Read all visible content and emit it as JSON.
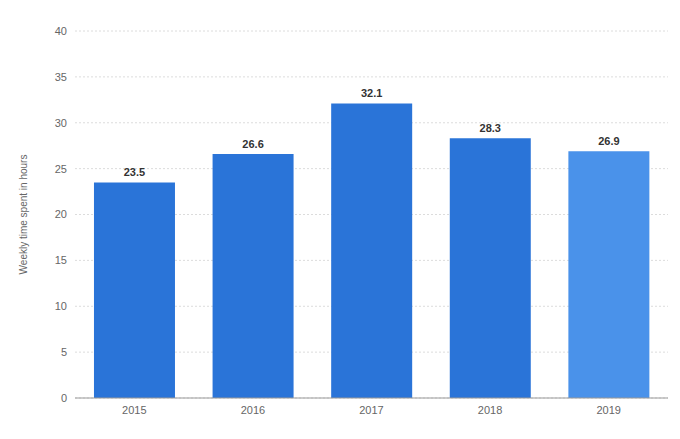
{
  "chart_data": {
    "type": "bar",
    "categories": [
      "2015",
      "2016",
      "2017",
      "2018",
      "2019"
    ],
    "values": [
      23.5,
      26.6,
      32.1,
      28.3,
      26.9
    ],
    "colors": [
      "#2a74d8",
      "#2a74d8",
      "#2a74d8",
      "#2a74d8",
      "#4a92ea"
    ],
    "y_label": "Weekly time spent in hours",
    "ylim": [
      0,
      40
    ],
    "yticks": [
      0,
      5,
      10,
      15,
      20,
      25,
      30,
      35,
      40
    ],
    "grid": true,
    "data_labels": true
  }
}
